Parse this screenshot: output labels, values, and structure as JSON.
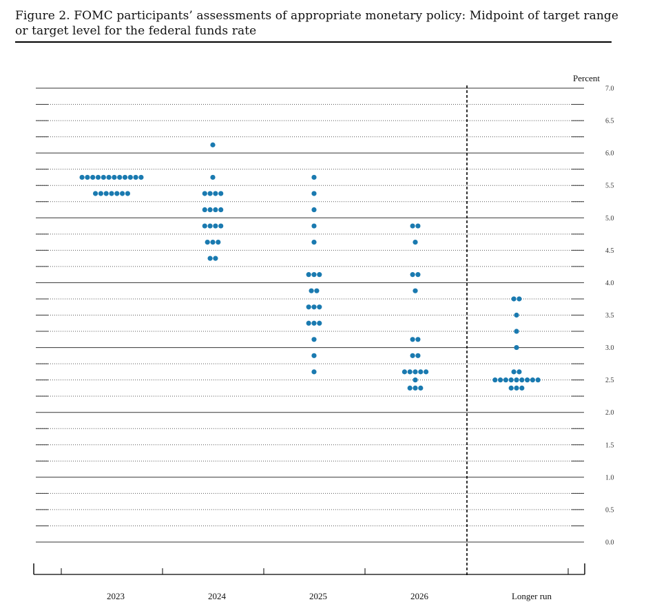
{
  "figure": {
    "caption": "Figure 2.  FOMC participants’ assessments of appropriate monetary policy: Midpoint of target range or target level for the federal funds rate"
  },
  "chart_data": {
    "type": "scatter",
    "title": "FOMC participants’ assessments of appropriate monetary policy: Midpoint of target range or target level for the federal funds rate",
    "ylabel": "Percent",
    "ylim": [
      0,
      7
    ],
    "y_ticks": [
      "0.0",
      "0.5",
      "1.0",
      "1.5",
      "2.0",
      "2.5",
      "3.0",
      "3.5",
      "4.0",
      "4.5",
      "5.0",
      "5.5",
      "6.0",
      "6.5",
      "7.0"
    ],
    "categories": [
      "2023",
      "2024",
      "2025",
      "2026",
      "Longer run"
    ],
    "grid": "dotted horizontal lines at every 0.25 percentage point; solid lines at whole percentages",
    "dot_color": "#1a7ab0",
    "dots": [
      {
        "category": "2023",
        "values": [
          {
            "rate": 5.625,
            "count": 12
          },
          {
            "rate": 5.375,
            "count": 7
          }
        ]
      },
      {
        "category": "2024",
        "values": [
          {
            "rate": 6.125,
            "count": 1
          },
          {
            "rate": 5.625,
            "count": 1
          },
          {
            "rate": 5.375,
            "count": 4
          },
          {
            "rate": 5.125,
            "count": 4
          },
          {
            "rate": 4.875,
            "count": 4
          },
          {
            "rate": 4.625,
            "count": 3
          },
          {
            "rate": 4.375,
            "count": 2
          }
        ]
      },
      {
        "category": "2025",
        "values": [
          {
            "rate": 5.625,
            "count": 1
          },
          {
            "rate": 5.375,
            "count": 1
          },
          {
            "rate": 5.125,
            "count": 1
          },
          {
            "rate": 4.875,
            "count": 1
          },
          {
            "rate": 4.625,
            "count": 1
          },
          {
            "rate": 4.125,
            "count": 3
          },
          {
            "rate": 3.875,
            "count": 2
          },
          {
            "rate": 3.625,
            "count": 3
          },
          {
            "rate": 3.375,
            "count": 3
          },
          {
            "rate": 3.125,
            "count": 1
          },
          {
            "rate": 2.875,
            "count": 1
          },
          {
            "rate": 2.625,
            "count": 1
          }
        ]
      },
      {
        "category": "2026",
        "values": [
          {
            "rate": 4.875,
            "count": 2
          },
          {
            "rate": 4.625,
            "count": 1
          },
          {
            "rate": 4.125,
            "count": 2
          },
          {
            "rate": 3.875,
            "count": 1
          },
          {
            "rate": 3.125,
            "count": 2
          },
          {
            "rate": 2.875,
            "count": 2
          },
          {
            "rate": 2.625,
            "count": 5
          },
          {
            "rate": 2.5,
            "count": 1
          },
          {
            "rate": 2.375,
            "count": 3
          }
        ]
      },
      {
        "category": "Longer run",
        "values": [
          {
            "rate": 3.75,
            "count": 2
          },
          {
            "rate": 3.5,
            "count": 1
          },
          {
            "rate": 3.25,
            "count": 1
          },
          {
            "rate": 3.0,
            "count": 1
          },
          {
            "rate": 2.625,
            "count": 2
          },
          {
            "rate": 2.5,
            "count": 9
          },
          {
            "rate": 2.375,
            "count": 3
          }
        ]
      }
    ]
  }
}
